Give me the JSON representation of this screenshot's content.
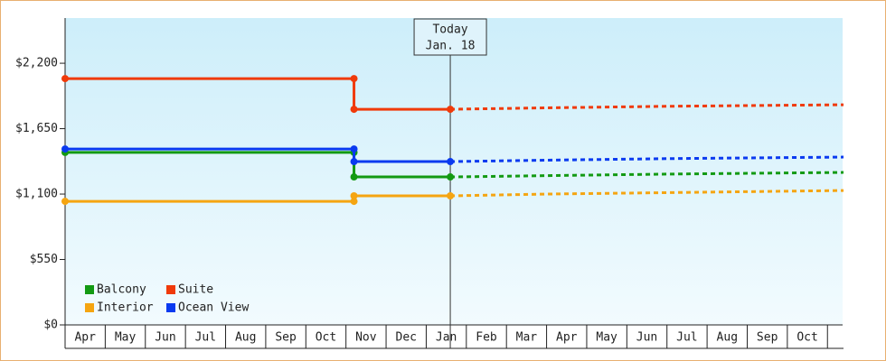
{
  "chart_data": {
    "type": "line",
    "annotation": [
      "Today",
      "Jan. 18"
    ],
    "x": [
      0,
      7.2,
      7.2,
      9.6
    ],
    "forecast_x": [
      9.6,
      12,
      15,
      19.4
    ],
    "xlim": [
      0,
      19.4
    ],
    "xticks": [
      {
        "value": 0.5,
        "label": "Apr"
      },
      {
        "value": 1.5,
        "label": "May"
      },
      {
        "value": 2.5,
        "label": "Jun"
      },
      {
        "value": 3.5,
        "label": "Jul"
      },
      {
        "value": 4.5,
        "label": "Aug"
      },
      {
        "value": 5.5,
        "label": "Sep"
      },
      {
        "value": 6.5,
        "label": "Oct"
      },
      {
        "value": 7.5,
        "label": "Nov"
      },
      {
        "value": 8.5,
        "label": "Dec"
      },
      {
        "value": 9.5,
        "label": "Jan"
      },
      {
        "value": 10.5,
        "label": "Feb"
      },
      {
        "value": 11.5,
        "label": "Mar"
      },
      {
        "value": 12.5,
        "label": "Apr"
      },
      {
        "value": 13.5,
        "label": "May"
      },
      {
        "value": 14.5,
        "label": "Jun"
      },
      {
        "value": 15.5,
        "label": "Jul"
      },
      {
        "value": 16.5,
        "label": "Aug"
      },
      {
        "value": 17.5,
        "label": "Sep"
      },
      {
        "value": 18.5,
        "label": "Oct"
      }
    ],
    "ylim": [
      0,
      2580
    ],
    "yticks": [
      {
        "value": 0,
        "label": "$0"
      },
      {
        "value": 550,
        "label": "$550"
      },
      {
        "value": 1100,
        "label": "$1,100"
      },
      {
        "value": 1650,
        "label": "$1,650"
      },
      {
        "value": 2200,
        "label": "$2,200"
      }
    ],
    "series": [
      {
        "name": "Balcony",
        "color": "#139a13",
        "values": [
          1450,
          1450,
          1244,
          1244
        ],
        "forecast": [
          1244,
          1255,
          1268,
          1282
        ]
      },
      {
        "name": "Suite",
        "color": "#f03a0a",
        "values": [
          2071,
          2071,
          1813,
          1813
        ],
        "forecast": [
          1813,
          1825,
          1838,
          1851
        ]
      },
      {
        "name": "Interior",
        "color": "#f5a511",
        "values": [
          1039,
          1039,
          1085,
          1085
        ],
        "forecast": [
          1085,
          1100,
          1112,
          1130
        ]
      },
      {
        "name": "Ocean View",
        "color": "#0a3af0",
        "values": [
          1479,
          1479,
          1373,
          1373
        ],
        "forecast": [
          1373,
          1385,
          1398,
          1411
        ]
      }
    ]
  }
}
